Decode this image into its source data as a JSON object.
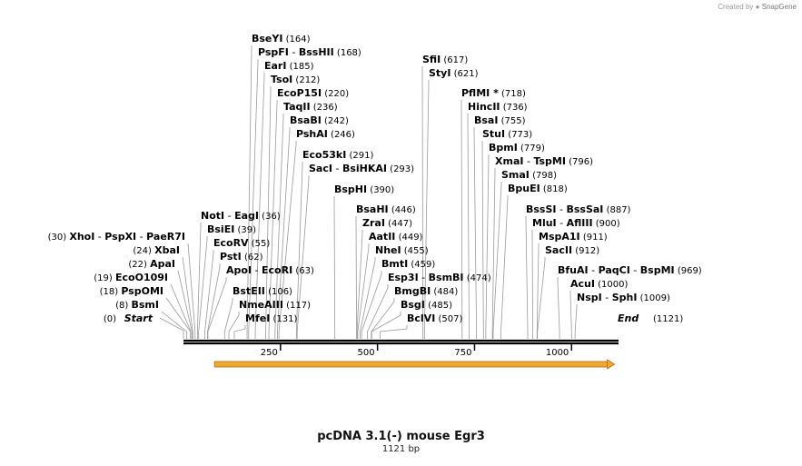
{
  "credit": {
    "prefix": "Created by",
    "brand": "SnapGene"
  },
  "map": {
    "title": "pcDNA 3.1(-) mouse Egr3",
    "length_label": "1121 bp",
    "length": 1121,
    "axis_ticks": [
      250,
      500,
      750,
      1000
    ],
    "start_label": "Start",
    "start_pos": "(0)",
    "end_label": "End",
    "end_pos": "(1121)",
    "feature": {
      "name": "insert arrow",
      "start": 80,
      "end": 1120,
      "color": "#f0a830"
    }
  },
  "sites": [
    {
      "name": "BsmI",
      "pos": 8,
      "text": "(8)"
    },
    {
      "name": "PspOMI",
      "pos": 18,
      "text": "(18)"
    },
    {
      "name": "EcoO109I",
      "pos": 19,
      "text": "(19)"
    },
    {
      "name": "ApaI",
      "pos": 22,
      "text": "(22)"
    },
    {
      "name": "XbaI",
      "pos": 24,
      "text": "(24)"
    },
    {
      "name": "XhoI - PspXI - PaeR7I",
      "pos": 30,
      "text": "(30)"
    },
    {
      "name": "NotI - EagI",
      "pos": 36,
      "text": "(36)"
    },
    {
      "name": "BsiEI",
      "pos": 39,
      "text": "(39)"
    },
    {
      "name": "EcoRV",
      "pos": 55,
      "text": "(55)"
    },
    {
      "name": "PstI",
      "pos": 62,
      "text": "(62)"
    },
    {
      "name": "ApoI - EcoRI",
      "pos": 63,
      "text": "(63)"
    },
    {
      "name": "BstEII",
      "pos": 106,
      "text": "(106)"
    },
    {
      "name": "NmeAIII",
      "pos": 117,
      "text": "(117)"
    },
    {
      "name": "MfeI",
      "pos": 131,
      "text": "(131)"
    },
    {
      "name": "BseYI",
      "pos": 164,
      "text": "(164)"
    },
    {
      "name": "PspFI - BssHII",
      "pos": 168,
      "text": "(168)"
    },
    {
      "name": "EarI",
      "pos": 185,
      "text": "(185)"
    },
    {
      "name": "TsoI",
      "pos": 212,
      "text": "(212)"
    },
    {
      "name": "EcoP15I",
      "pos": 220,
      "text": "(220)"
    },
    {
      "name": "TaqII",
      "pos": 236,
      "text": "(236)"
    },
    {
      "name": "BsaBI",
      "pos": 242,
      "text": "(242)"
    },
    {
      "name": "PshAI",
      "pos": 246,
      "text": "(246)"
    },
    {
      "name": "Eco53kI",
      "pos": 291,
      "text": "(291)"
    },
    {
      "name": "SacI - BsiHKAI",
      "pos": 293,
      "text": "(293)"
    },
    {
      "name": "BspHI",
      "pos": 390,
      "text": "(390)"
    },
    {
      "name": "BsaHI",
      "pos": 446,
      "text": "(446)"
    },
    {
      "name": "ZraI",
      "pos": 447,
      "text": "(447)"
    },
    {
      "name": "AatII",
      "pos": 449,
      "text": "(449)"
    },
    {
      "name": "NheI",
      "pos": 455,
      "text": "(455)"
    },
    {
      "name": "BmtI",
      "pos": 459,
      "text": "(459)"
    },
    {
      "name": "Esp3I - BsmBI",
      "pos": 474,
      "text": "(474)"
    },
    {
      "name": "BmgBI",
      "pos": 484,
      "text": "(484)"
    },
    {
      "name": "BsgI",
      "pos": 485,
      "text": "(485)"
    },
    {
      "name": "BclVI",
      "pos": 507,
      "text": "(507)"
    },
    {
      "name": "SfiI",
      "pos": 617,
      "text": "(617)"
    },
    {
      "name": "StyI",
      "pos": 621,
      "text": "(621)"
    },
    {
      "name": "PflMI *",
      "pos": 718,
      "text": "(718)"
    },
    {
      "name": "HincII",
      "pos": 736,
      "text": "(736)"
    },
    {
      "name": "BsaI",
      "pos": 755,
      "text": "(755)"
    },
    {
      "name": "StuI",
      "pos": 773,
      "text": "(773)"
    },
    {
      "name": "BpmI",
      "pos": 779,
      "text": "(779)"
    },
    {
      "name": "XmaI - TspMI",
      "pos": 796,
      "text": "(796)"
    },
    {
      "name": "SmaI",
      "pos": 798,
      "text": "(798)"
    },
    {
      "name": "BpuEI",
      "pos": 818,
      "text": "(818)"
    },
    {
      "name": "BssSI - BssSaI",
      "pos": 887,
      "text": "(887)"
    },
    {
      "name": "MluI - AflIII",
      "pos": 900,
      "text": "(900)"
    },
    {
      "name": "MspA1I",
      "pos": 911,
      "text": "(911)"
    },
    {
      "name": "SacII",
      "pos": 912,
      "text": "(912)"
    },
    {
      "name": "BfuAI - PaqCI - BspMI",
      "pos": 969,
      "text": "(969)"
    },
    {
      "name": "AcuI",
      "pos": 1000,
      "text": "(1000)"
    },
    {
      "name": "NspI - SphI",
      "pos": 1009,
      "text": "(1009)"
    }
  ]
}
